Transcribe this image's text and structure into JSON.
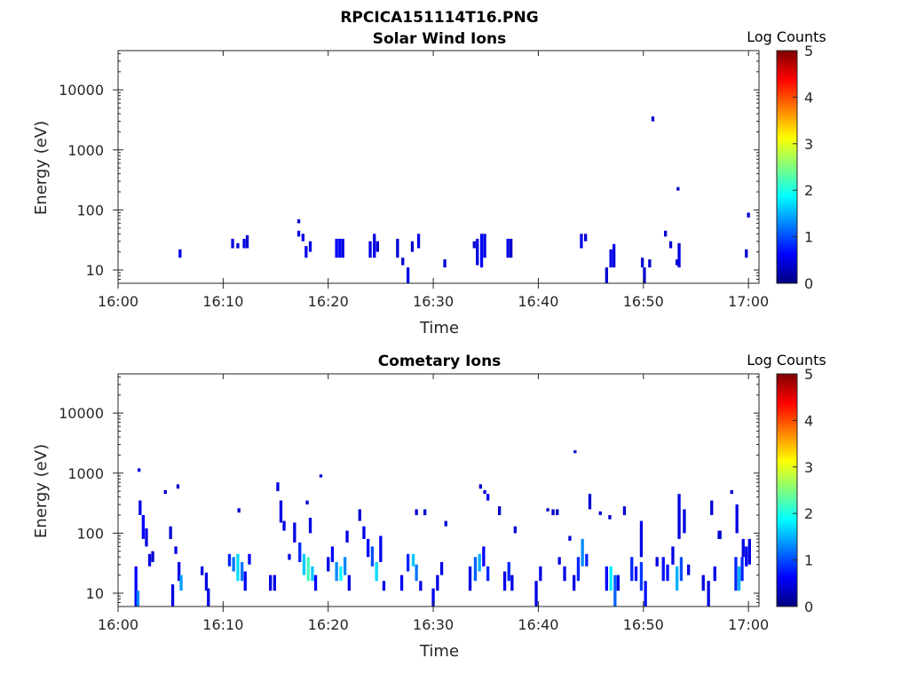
{
  "figure": {
    "title": "RPCICA151114T16.PNG"
  },
  "colormap": {
    "name": "jet",
    "stops": [
      "#00007f",
      "#0000ff",
      "#007fff",
      "#00ffff",
      "#7fff7f",
      "#ffff00",
      "#ff7f00",
      "#ff0000",
      "#7f0000"
    ]
  },
  "chart_data": [
    {
      "type": "heatmap",
      "title": "Solar Wind Ions",
      "xlabel": "Time",
      "ylabel": "Energy (eV)",
      "x_ticks": [
        "16:00",
        "16:10",
        "16:20",
        "16:30",
        "16:40",
        "16:50",
        "17:00"
      ],
      "x_range_minutes": [
        0,
        61
      ],
      "y_scale": "log",
      "y_range": [
        6,
        45000
      ],
      "y_ticks": [
        "10",
        "100",
        "1000",
        "10000"
      ],
      "colorbar": {
        "label": "Log Counts",
        "range": [
          0,
          5
        ],
        "ticks": [
          "0",
          "1",
          "2",
          "3",
          "4",
          "5"
        ]
      },
      "cells": [
        [
          5.9,
          16,
          22,
          0.5
        ],
        [
          10.9,
          23,
          33,
          0.5
        ],
        [
          11.4,
          23,
          28,
          0.4
        ],
        [
          12.0,
          23,
          33,
          0.5
        ],
        [
          12.3,
          23,
          38,
          0.4
        ],
        [
          17.2,
          60,
          70,
          0.4
        ],
        [
          17.2,
          36,
          45,
          0.5
        ],
        [
          17.6,
          30,
          40,
          0.5
        ],
        [
          17.9,
          16,
          25,
          0.5
        ],
        [
          18.3,
          20,
          30,
          0.5
        ],
        [
          20.8,
          16,
          33,
          0.6
        ],
        [
          21.1,
          16,
          33,
          0.6
        ],
        [
          21.4,
          16,
          33,
          0.5
        ],
        [
          24.0,
          16,
          30,
          0.5
        ],
        [
          24.4,
          16,
          40,
          0.5
        ],
        [
          24.7,
          20,
          30,
          0.4
        ],
        [
          26.6,
          16,
          33,
          0.4
        ],
        [
          27.1,
          12,
          16,
          0.4
        ],
        [
          27.6,
          6,
          11,
          0.5
        ],
        [
          28.0,
          20,
          30,
          0.4
        ],
        [
          28.6,
          23,
          40,
          0.5
        ],
        [
          31.1,
          11,
          15,
          0.4
        ],
        [
          33.9,
          23,
          30,
          0.4
        ],
        [
          34.2,
          12,
          33,
          0.5
        ],
        [
          34.6,
          11,
          40,
          0.6
        ],
        [
          34.9,
          16,
          40,
          0.5
        ],
        [
          37.1,
          16,
          33,
          0.5
        ],
        [
          37.4,
          16,
          33,
          0.4
        ],
        [
          44.1,
          23,
          40,
          0.5
        ],
        [
          44.5,
          30,
          40,
          0.4
        ],
        [
          46.5,
          6,
          11,
          0.4
        ],
        [
          46.9,
          11,
          22,
          0.5
        ],
        [
          47.2,
          11,
          27,
          0.5
        ],
        [
          49.9,
          11,
          16,
          0.4
        ],
        [
          50.1,
          6,
          11,
          0.4
        ],
        [
          50.6,
          11,
          15,
          0.4
        ],
        [
          50.9,
          3000,
          3600,
          0.4
        ],
        [
          52.1,
          36,
          45,
          0.4
        ],
        [
          52.6,
          23,
          30,
          0.4
        ],
        [
          53.2,
          12,
          15,
          0.4
        ],
        [
          53.4,
          11,
          28,
          0.5
        ],
        [
          53.3,
          210,
          240,
          0.4
        ],
        [
          59.8,
          16,
          22,
          0.4
        ],
        [
          60.0,
          75,
          90,
          0.4
        ]
      ]
    },
    {
      "type": "heatmap",
      "title": "Cometary Ions",
      "xlabel": "Time",
      "ylabel": "Energy (eV)",
      "x_ticks": [
        "16:00",
        "16:10",
        "16:20",
        "16:30",
        "16:40",
        "16:50",
        "17:00"
      ],
      "x_range_minutes": [
        0,
        61
      ],
      "y_scale": "log",
      "y_range": [
        6,
        45000
      ],
      "y_ticks": [
        "10",
        "100",
        "1000",
        "10000"
      ],
      "colorbar": {
        "label": "Log Counts",
        "range": [
          0,
          5
        ],
        "ticks": [
          "0",
          "1",
          "2",
          "3",
          "4",
          "5"
        ]
      },
      "cells": [
        [
          1.7,
          6,
          28,
          0.6
        ],
        [
          1.9,
          6,
          11,
          1.3
        ],
        [
          2.0,
          1050,
          1200,
          0.5
        ],
        [
          2.1,
          200,
          350,
          0.5
        ],
        [
          2.4,
          80,
          200,
          0.6
        ],
        [
          2.7,
          60,
          120,
          0.5
        ],
        [
          3.0,
          28,
          45,
          0.5
        ],
        [
          3.3,
          33,
          50,
          0.4
        ],
        [
          4.5,
          450,
          520,
          0.4
        ],
        [
          5.0,
          80,
          130,
          0.4
        ],
        [
          5.2,
          6,
          14,
          0.5
        ],
        [
          5.5,
          45,
          60,
          0.5
        ],
        [
          5.8,
          16,
          33,
          0.5
        ],
        [
          6.0,
          11,
          20,
          1.4
        ],
        [
          5.7,
          550,
          650,
          0.4
        ],
        [
          8.0,
          20,
          28,
          0.5
        ],
        [
          8.4,
          11,
          22,
          0.5
        ],
        [
          8.6,
          6,
          12,
          0.5
        ],
        [
          10.6,
          28,
          45,
          0.8
        ],
        [
          11.0,
          23,
          40,
          1.2
        ],
        [
          11.4,
          16,
          45,
          1.7
        ],
        [
          11.8,
          16,
          33,
          1.2
        ],
        [
          12.1,
          11,
          23,
          0.6
        ],
        [
          12.5,
          30,
          45,
          0.6
        ],
        [
          11.5,
          220,
          260,
          0.4
        ],
        [
          14.5,
          11,
          20,
          0.5
        ],
        [
          14.9,
          11,
          20,
          0.5
        ],
        [
          15.2,
          500,
          700,
          0.5
        ],
        [
          15.5,
          150,
          350,
          0.5
        ],
        [
          15.8,
          110,
          160,
          0.5
        ],
        [
          16.3,
          36,
          45,
          0.5
        ],
        [
          16.8,
          70,
          150,
          0.5
        ],
        [
          17.3,
          33,
          70,
          0.8
        ],
        [
          17.7,
          20,
          45,
          1.6
        ],
        [
          18.1,
          16,
          40,
          2.2
        ],
        [
          18.5,
          16,
          28,
          1.6
        ],
        [
          18.0,
          300,
          350,
          0.4
        ],
        [
          18.8,
          11,
          20,
          0.6
        ],
        [
          18.3,
          100,
          180,
          0.5
        ],
        [
          19.3,
          850,
          950,
          0.4
        ],
        [
          20.0,
          23,
          40,
          0.5
        ],
        [
          20.4,
          33,
          60,
          0.6
        ],
        [
          20.8,
          16,
          33,
          1.3
        ],
        [
          21.2,
          16,
          28,
          1.9
        ],
        [
          21.6,
          20,
          40,
          1.3
        ],
        [
          22.0,
          11,
          20,
          0.5
        ],
        [
          21.8,
          70,
          110,
          0.5
        ],
        [
          23.0,
          160,
          250,
          0.4
        ],
        [
          23.4,
          80,
          130,
          0.5
        ],
        [
          23.8,
          40,
          80,
          0.6
        ],
        [
          24.2,
          28,
          60,
          1.0
        ],
        [
          24.6,
          16,
          33,
          1.7
        ],
        [
          25.0,
          33,
          90,
          0.6
        ],
        [
          25.3,
          11,
          16,
          0.5
        ],
        [
          27.0,
          11,
          20,
          0.6
        ],
        [
          27.6,
          23,
          45,
          0.8
        ],
        [
          28.1,
          28,
          45,
          1.6
        ],
        [
          28.4,
          16,
          30,
          1.2
        ],
        [
          28.8,
          11,
          16,
          0.5
        ],
        [
          28.4,
          200,
          250,
          0.4
        ],
        [
          29.2,
          200,
          250,
          0.4
        ],
        [
          30.0,
          6,
          12,
          0.6
        ],
        [
          30.4,
          11,
          20,
          0.5
        ],
        [
          30.8,
          20,
          33,
          0.5
        ],
        [
          31.2,
          130,
          160,
          0.4
        ],
        [
          33.5,
          11,
          28,
          0.5
        ],
        [
          34.0,
          16,
          40,
          1.1
        ],
        [
          34.4,
          23,
          45,
          1.5
        ],
        [
          34.8,
          28,
          60,
          0.6
        ],
        [
          35.2,
          16,
          28,
          0.8
        ],
        [
          34.5,
          550,
          650,
          0.4
        ],
        [
          35.2,
          350,
          450,
          0.5
        ],
        [
          34.9,
          450,
          520,
          0.4
        ],
        [
          36.8,
          11,
          23,
          0.5
        ],
        [
          37.2,
          16,
          33,
          0.8
        ],
        [
          37.5,
          11,
          20,
          0.5
        ],
        [
          37.8,
          100,
          130,
          0.4
        ],
        [
          36.3,
          200,
          280,
          0.4
        ],
        [
          39.8,
          6,
          16,
          0.5
        ],
        [
          40.2,
          16,
          28,
          0.5
        ],
        [
          40.9,
          230,
          260,
          0.4
        ],
        [
          41.4,
          200,
          250,
          0.4
        ],
        [
          41.8,
          200,
          250,
          0.4
        ],
        [
          42.0,
          30,
          40,
          0.5
        ],
        [
          42.5,
          16,
          28,
          0.5
        ],
        [
          43.0,
          75,
          90,
          0.4
        ],
        [
          43.4,
          11,
          20,
          0.5
        ],
        [
          43.8,
          16,
          40,
          0.8
        ],
        [
          44.2,
          28,
          80,
          1.3
        ],
        [
          44.6,
          28,
          45,
          0.8
        ],
        [
          43.5,
          2150,
          2400,
          0.4
        ],
        [
          44.9,
          250,
          450,
          0.4
        ],
        [
          45.9,
          200,
          230,
          0.4
        ],
        [
          46.5,
          11,
          28,
          0.6
        ],
        [
          46.9,
          11,
          28,
          1.8
        ],
        [
          47.3,
          6,
          20,
          1.1
        ],
        [
          47.6,
          11,
          20,
          0.5
        ],
        [
          46.8,
          170,
          200,
          0.4
        ],
        [
          48.2,
          200,
          280,
          0.4
        ],
        [
          48.9,
          16,
          40,
          0.8
        ],
        [
          49.3,
          16,
          28,
          0.7
        ],
        [
          49.8,
          11,
          33,
          0.9
        ],
        [
          50.2,
          6,
          16,
          0.7
        ],
        [
          49.8,
          40,
          160,
          0.5
        ],
        [
          51.3,
          28,
          40,
          0.5
        ],
        [
          51.9,
          16,
          40,
          0.7
        ],
        [
          52.3,
          16,
          30,
          0.7
        ],
        [
          52.8,
          30,
          60,
          0.5
        ],
        [
          53.2,
          11,
          28,
          1.5
        ],
        [
          53.6,
          16,
          40,
          1.0
        ],
        [
          53.4,
          80,
          450,
          0.5
        ],
        [
          53.9,
          100,
          250,
          0.5
        ],
        [
          54.3,
          20,
          30,
          0.5
        ],
        [
          55.7,
          11,
          20,
          0.5
        ],
        [
          56.2,
          6,
          16,
          0.5
        ],
        [
          56.8,
          16,
          28,
          0.5
        ],
        [
          57.2,
          80,
          110,
          0.4
        ],
        [
          57.3,
          80,
          110,
          0.4
        ],
        [
          56.5,
          200,
          350,
          0.4
        ],
        [
          58.4,
          450,
          520,
          0.4
        ],
        [
          58.8,
          11,
          40,
          0.8
        ],
        [
          59.1,
          11,
          28,
          1.5
        ],
        [
          59.4,
          16,
          40,
          0.8
        ],
        [
          59.8,
          28,
          60,
          0.6
        ],
        [
          60.1,
          30,
          80,
          0.5
        ],
        [
          58.9,
          100,
          300,
          0.5
        ],
        [
          59.5,
          40,
          80,
          0.5
        ]
      ]
    }
  ]
}
